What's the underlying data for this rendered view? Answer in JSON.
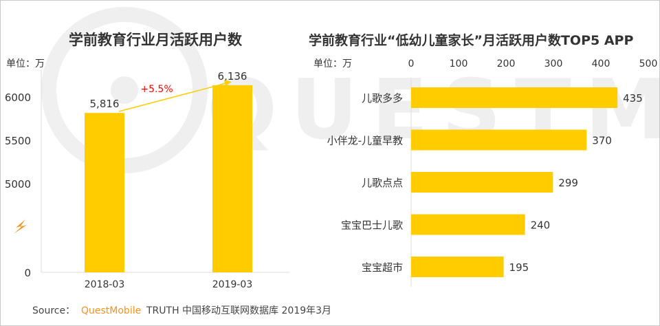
{
  "colors": {
    "bar": "#FFCC00",
    "growth": "#FF0000",
    "brand": "#F7931E",
    "text": "#333333"
  },
  "watermark": "QUESTMOBILE",
  "chart_data": [
    {
      "type": "bar",
      "title": "学前教育行业月活跃用户数",
      "unit_label": "单位：万",
      "categories": [
        "2018-03",
        "2019-03"
      ],
      "values": [
        5816,
        6136
      ],
      "value_labels": [
        "5,816",
        "6,136"
      ],
      "yticks": [
        "0",
        "5000",
        "5500",
        "6000"
      ],
      "axis_break": true,
      "ylim": [
        5000,
        6250
      ],
      "annotation": "+5.5%",
      "grid": false
    },
    {
      "type": "bar",
      "orientation": "horizontal",
      "title": "学前教育行业“低幼儿童家长”月活跃用户数TOP5 APP",
      "unit_label": "单位：万",
      "categories": [
        "儿歌多多",
        "小伴龙-儿童早教",
        "儿歌点点",
        "宝宝巴士儿歌",
        "宝宝超市"
      ],
      "values": [
        435,
        370,
        299,
        240,
        195
      ],
      "xticks": [
        "0",
        "100",
        "200",
        "300",
        "400",
        "500"
      ],
      "xlim": [
        0,
        500
      ],
      "grid": false
    }
  ],
  "footer": {
    "source_label": "Source：",
    "brand": "QuestMobile",
    "rest": "TRUTH 中国移动互联网数据库 2019年3月"
  }
}
